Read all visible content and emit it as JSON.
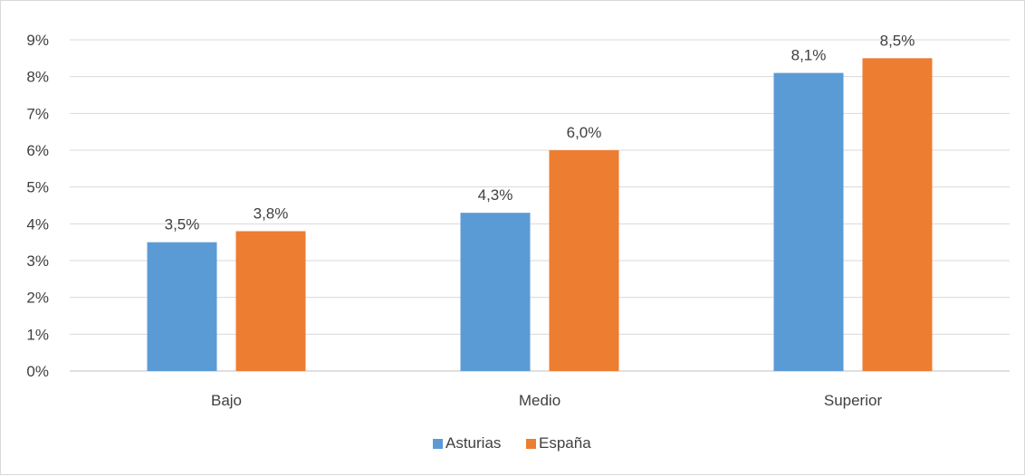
{
  "chart_data": {
    "type": "bar",
    "categories": [
      "Bajo",
      "Medio",
      "Superior"
    ],
    "series": [
      {
        "name": "Asturias",
        "values": [
          3.5,
          4.3,
          8.1
        ],
        "labels": [
          "3,5%",
          "4,3%",
          "8,1%"
        ],
        "color": "#5b9bd5"
      },
      {
        "name": "España",
        "values": [
          3.8,
          6.0,
          8.5
        ],
        "labels": [
          "3,8%",
          "6,0%",
          "8,5%"
        ],
        "color": "#ed7d31"
      }
    ],
    "ylim": [
      0,
      9
    ],
    "yticks": [
      "0%",
      "1%",
      "2%",
      "3%",
      "4%",
      "5%",
      "6%",
      "7%",
      "8%",
      "9%"
    ],
    "grid": true,
    "legend_position": "bottom",
    "xlabel": "",
    "ylabel": ""
  }
}
